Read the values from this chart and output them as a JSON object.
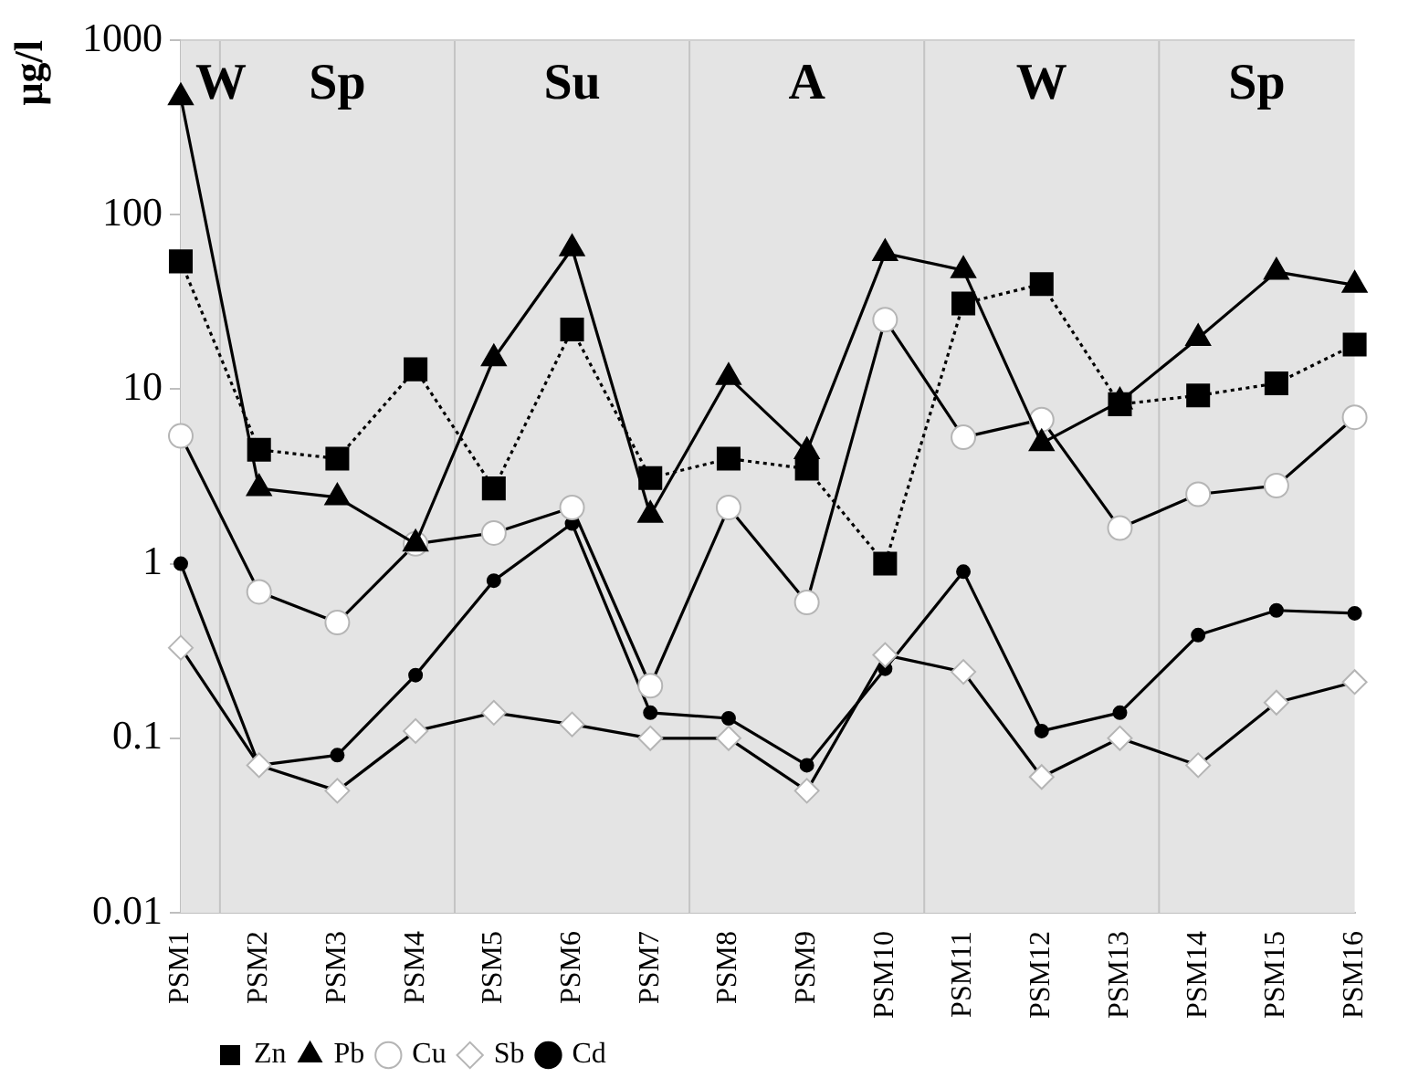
{
  "chart_data": {
    "type": "line",
    "ylabel": "μg/l",
    "categories": [
      "PSM1",
      "PSM2",
      "PSM3",
      "PSM4",
      "PSM5",
      "PSM6",
      "PSM7",
      "PSM8",
      "PSM9",
      "PSM10",
      "PSM11",
      "PSM12",
      "PSM13",
      "PSM14",
      "PSM15",
      "PSM16"
    ],
    "series": [
      {
        "name": "Zn",
        "color": "#000000",
        "marker": "square",
        "line_style": "dotted",
        "values": [
          54,
          4.5,
          4.0,
          13,
          2.7,
          22,
          3.1,
          4.0,
          3.5,
          1.0,
          31,
          40,
          8.2,
          9.2,
          10.8,
          18
        ]
      },
      {
        "name": "Pb",
        "color": "#000000",
        "marker": "triangle",
        "line_style": "solid",
        "values": [
          470,
          2.7,
          2.4,
          1.3,
          15,
          64,
          1.9,
          11.7,
          4.4,
          60,
          48,
          4.9,
          8.5,
          19.6,
          47,
          39.5
        ]
      },
      {
        "name": "Cu",
        "color": "#ffffff",
        "marker": "circle",
        "line_style": "solid",
        "values": [
          5.4,
          0.69,
          0.46,
          1.3,
          1.5,
          2.1,
          0.2,
          2.1,
          0.6,
          25,
          5.3,
          6.7,
          1.6,
          2.5,
          2.8,
          6.9
        ]
      },
      {
        "name": "Sb",
        "color": "#ffffff",
        "marker": "diamond",
        "line_style": "solid",
        "values": [
          0.33,
          0.07,
          0.05,
          0.11,
          0.14,
          0.12,
          0.1,
          0.1,
          0.05,
          0.3,
          0.24,
          0.06,
          0.1,
          0.07,
          0.16,
          0.21
        ]
      },
      {
        "name": "Cd",
        "color": "#000000",
        "marker": "circle",
        "line_style": "solid",
        "values": [
          1.0,
          0.07,
          0.08,
          0.23,
          0.8,
          1.7,
          0.14,
          0.13,
          0.07,
          0.25,
          0.9,
          0.11,
          0.14,
          0.39,
          0.54,
          0.52
        ]
      }
    ],
    "ylim": [
      0.01,
      1000
    ],
    "yticks": [
      0.01,
      0.1,
      1,
      10,
      100,
      1000
    ],
    "log": true,
    "legend": "bottom left",
    "bands": [
      {
        "axis": "x",
        "from": "PSM1",
        "to": "PSM1",
        "label": "W",
        "color": "#e4e4e4"
      },
      {
        "axis": "x",
        "from": "PSM2",
        "to": "PSM4",
        "label": "Sp",
        "color": "#e4e4e4"
      },
      {
        "axis": "x",
        "from": "PSM5",
        "to": "PSM7",
        "label": "Su",
        "color": "#e4e4e4"
      },
      {
        "axis": "x",
        "from": "PSM8",
        "to": "PSM10",
        "label": "A",
        "color": "#e4e4e4"
      },
      {
        "axis": "x",
        "from": "PSM11",
        "to": "PSM13",
        "label": "W",
        "color": "#e4e4e4"
      },
      {
        "axis": "x",
        "from": "PSM14",
        "to": "PSM16",
        "label": "Sp",
        "color": "#e4e4e4"
      }
    ]
  }
}
